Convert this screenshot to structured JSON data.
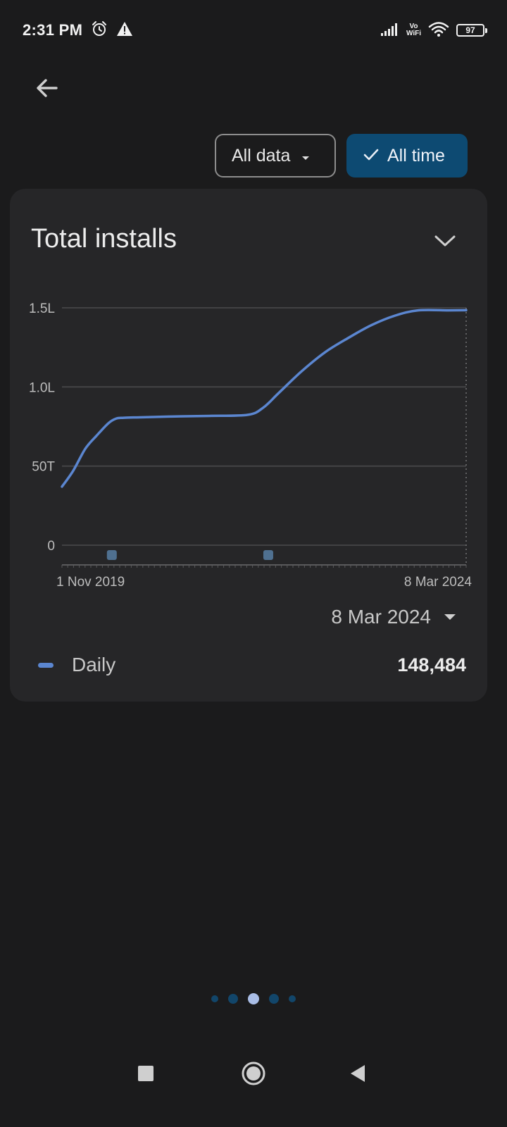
{
  "status_bar": {
    "time": "2:31 PM",
    "icons": [
      "alarm-icon",
      "warning-icon",
      "signal-icon",
      "vowifi-icon",
      "wifi-icon",
      "battery-icon"
    ],
    "vowifi_top": "Vo",
    "vowifi_bottom": "WiFi",
    "battery": "97"
  },
  "filters": {
    "data_label": "All data",
    "time_label": "All time"
  },
  "card": {
    "title": "Total installs",
    "selected_date": "8 Mar 2024",
    "legend_label": "Daily",
    "legend_value": "148,484"
  },
  "colors": {
    "line": "#5b86d0",
    "selected_chip": "#0d4a72"
  },
  "chart_data": {
    "type": "line",
    "title": "Total installs",
    "y_tick_labels": [
      "0",
      "50T",
      "1.0L",
      "1.5L"
    ],
    "y_ticks": [
      0,
      50000,
      100000,
      150000
    ],
    "ylim": [
      0,
      150000
    ],
    "x_tick_labels": [
      "1 Nov 2019",
      "8 Mar 2024"
    ],
    "x_range": [
      "2019-11-01",
      "2024-03-08"
    ],
    "series": [
      {
        "name": "Daily",
        "x": [
          "2019-11-01",
          "2019-12-15",
          "2020-02-01",
          "2020-03-15",
          "2020-05-01",
          "2020-06-01",
          "2020-07-01",
          "2020-09-01",
          "2021-01-01",
          "2021-06-01",
          "2021-11-01",
          "2022-01-01",
          "2022-03-01",
          "2022-06-01",
          "2022-09-01",
          "2022-12-01",
          "2023-03-01",
          "2023-06-01",
          "2023-09-01",
          "2024-01-01",
          "2024-03-08"
        ],
        "values": [
          37000,
          47000,
          61000,
          69000,
          77000,
          80000,
          80500,
          80800,
          81300,
          81700,
          82400,
          87000,
          96000,
          110000,
          122000,
          131000,
          139000,
          145000,
          148400,
          148400,
          148484
        ]
      }
    ],
    "markers_x": [
      "2020-05-15",
      "2022-01-20"
    ],
    "crosshair_x": "2024-03-08",
    "grid": true
  }
}
